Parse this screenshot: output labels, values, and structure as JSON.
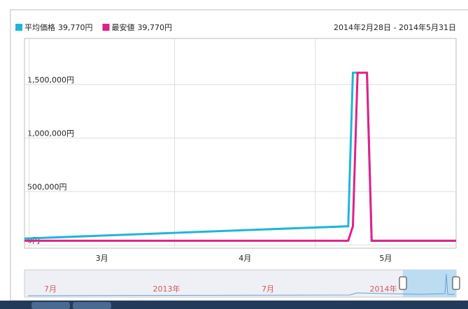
{
  "chart_data": {
    "type": "line",
    "date_range": "2014年2月28日 - 2014年5月31日",
    "x": [
      "2014-02-28",
      "2014-05-08",
      "2014-05-09",
      "2014-05-10",
      "2014-05-12",
      "2014-05-13",
      "2014-05-31"
    ],
    "series": [
      {
        "name": "平均価格",
        "legend_value": "39,770円",
        "color": "#1fb5d9",
        "values": [
          60000,
          175000,
          1610000,
          1610000,
          1610000,
          39770,
          39770
        ]
      },
      {
        "name": "最安値",
        "legend_value": "39,770円",
        "color": "#e0218a",
        "values": [
          39770,
          39770,
          175000,
          1610000,
          1610000,
          39770,
          39770
        ]
      }
    ],
    "xlim": [
      "2014-02-28",
      "2014-05-31"
    ],
    "xticks": [
      {
        "value": "2014-03-01",
        "label": "3月"
      },
      {
        "value": "2014-04-01",
        "label": "4月"
      },
      {
        "value": "2014-05-01",
        "label": "5月"
      }
    ],
    "ylim": [
      -30000,
      1930000
    ],
    "yticks": [
      {
        "value": 0,
        "label": "0円"
      },
      {
        "value": 500000,
        "label": "500,000円"
      },
      {
        "value": 1000000,
        "label": "1,000,000円"
      },
      {
        "value": 1500000,
        "label": "1,500,000円"
      }
    ],
    "grid": true
  },
  "navigator": {
    "labels": [
      "7月",
      "2013年",
      "7月",
      "2014年"
    ]
  }
}
